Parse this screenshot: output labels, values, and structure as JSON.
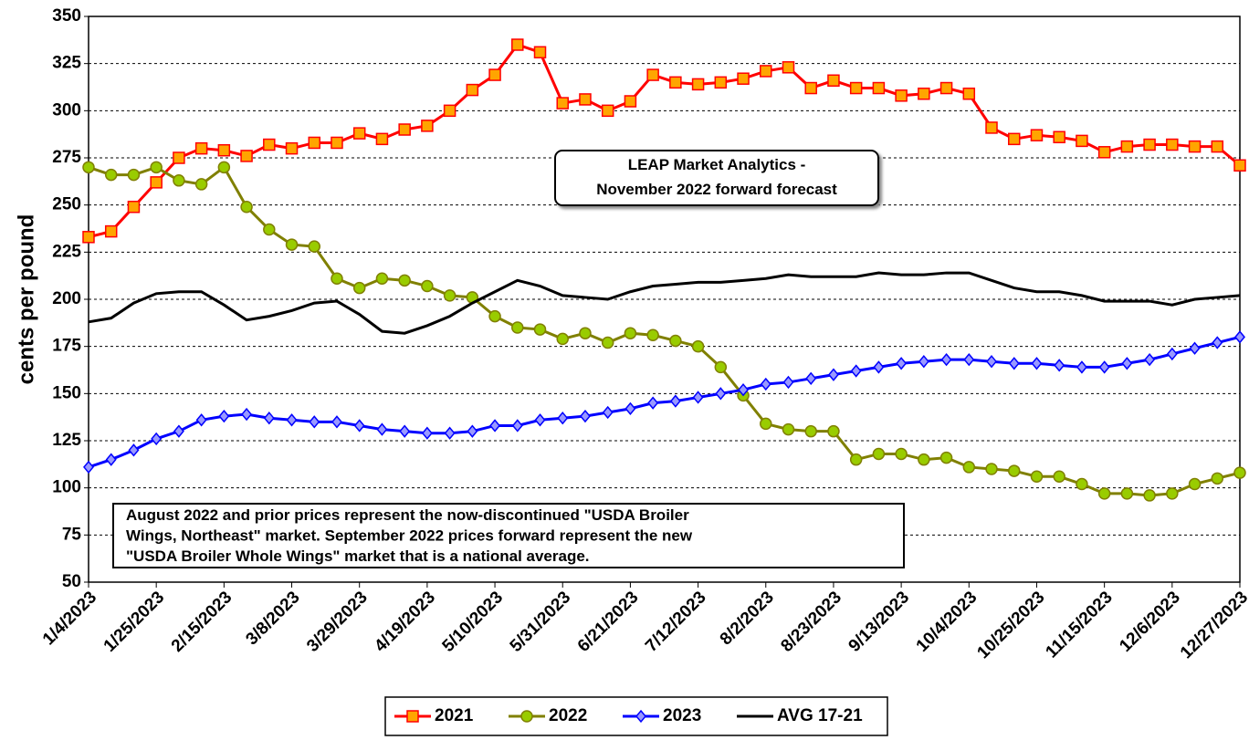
{
  "chart_data": {
    "type": "line",
    "y_label": "cents per pound",
    "categories": [
      "1/4/2023",
      null,
      null,
      "1/25/2023",
      null,
      null,
      "2/15/2023",
      null,
      null,
      "3/8/2023",
      null,
      null,
      "3/29/2023",
      null,
      null,
      "4/19/2023",
      null,
      null,
      "5/10/2023",
      null,
      null,
      "5/31/2023",
      null,
      null,
      "6/21/2023",
      null,
      null,
      "7/12/2023",
      null,
      null,
      "8/2/2023",
      null,
      null,
      "8/23/2023",
      null,
      null,
      "9/13/2023",
      null,
      null,
      "10/4/2023",
      null,
      null,
      "10/25/2023",
      null,
      null,
      "11/15/2023",
      null,
      null,
      "12/6/2023",
      null,
      null,
      "12/27/2023"
    ],
    "series": [
      {
        "name": "2021",
        "color": "#ff0000",
        "marker": "square",
        "marker_fill": "#ffa500",
        "values": [
          233,
          236,
          249,
          262,
          275,
          280,
          279,
          276,
          282,
          280,
          283,
          283,
          288,
          285,
          290,
          292,
          300,
          311,
          319,
          335,
          331,
          304,
          306,
          300,
          305,
          319,
          315,
          314,
          315,
          317,
          321,
          323,
          312,
          316,
          312,
          312,
          308,
          309,
          312,
          309,
          291,
          285,
          287,
          286,
          284,
          278,
          281,
          282,
          282,
          281,
          281,
          271
        ]
      },
      {
        "name": "2022",
        "color": "#808000",
        "marker": "circle",
        "marker_fill": "#99cc00",
        "values": [
          270,
          266,
          266,
          270,
          263,
          261,
          270,
          249,
          237,
          229,
          228,
          211,
          206,
          211,
          210,
          207,
          202,
          201,
          191,
          185,
          184,
          179,
          182,
          177,
          182,
          181,
          178,
          175,
          164,
          149,
          134,
          131,
          130,
          130,
          115,
          118,
          118,
          115,
          116,
          111,
          110,
          109,
          106,
          106,
          102,
          97,
          97,
          96,
          97,
          102,
          105,
          108
        ]
      },
      {
        "name": "2023",
        "color": "#0000ff",
        "marker": "diamond",
        "marker_fill": "#9999ff",
        "values": [
          111,
          115,
          120,
          126,
          130,
          136,
          138,
          139,
          137,
          136,
          135,
          135,
          133,
          131,
          130,
          129,
          129,
          130,
          133,
          133,
          136,
          137,
          138,
          140,
          142,
          145,
          146,
          148,
          150,
          152,
          155,
          156,
          158,
          160,
          162,
          164,
          166,
          167,
          168,
          168,
          167,
          166,
          166,
          165,
          164,
          164,
          166,
          168,
          171,
          174,
          177,
          180
        ]
      },
      {
        "name": "AVG 17-21",
        "color": "#000000",
        "marker": "none",
        "marker_fill": "#000000",
        "values": [
          188,
          190,
          198,
          203,
          204,
          204,
          197,
          189,
          191,
          194,
          198,
          199,
          192,
          183,
          182,
          186,
          191,
          198,
          204,
          210,
          207,
          202,
          201,
          200,
          204,
          207,
          208,
          209,
          209,
          210,
          211,
          213,
          212,
          212,
          212,
          214,
          213,
          213,
          214,
          214,
          210,
          206,
          204,
          204,
          202,
          199,
          199,
          199,
          197,
          200,
          201,
          202
        ]
      }
    ],
    "ylim": [
      50,
      350
    ],
    "yticks": [
      50,
      75,
      100,
      125,
      150,
      175,
      200,
      225,
      250,
      275,
      300,
      325,
      350
    ],
    "grid": true,
    "legend": "bottom",
    "annotations": [
      {
        "lines": [
          "LEAP Market Analytics -",
          "November 2022 forward forecast"
        ]
      },
      {
        "lines": [
          "August 2022 and prior prices represent the now-discontinued \"USDA Broiler",
          "Wings, Northeast\" market. September 2022 prices forward represent the new",
          "\"USDA Broiler Whole Wings\" market that is a national average."
        ]
      }
    ]
  }
}
